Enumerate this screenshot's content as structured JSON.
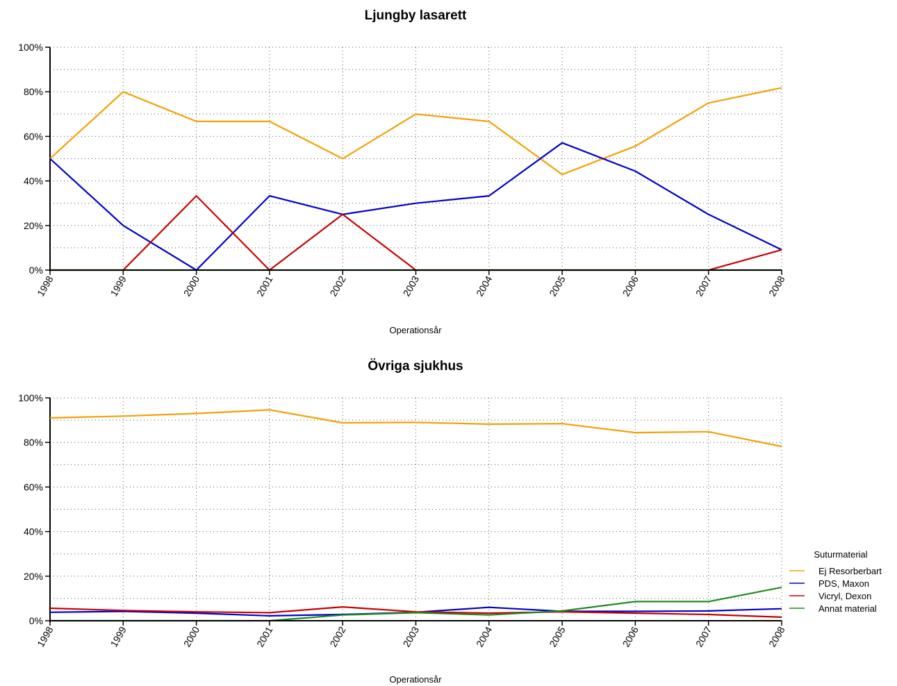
{
  "chart_data": [
    {
      "type": "line",
      "title": "Ljungby lasarett",
      "xlabel": "Operationsår",
      "ylabel": "",
      "ylim": [
        0,
        100
      ],
      "yticks": [
        "0%",
        "20%",
        "40%",
        "60%",
        "80%",
        "100%"
      ],
      "x": [
        "1998",
        "1999",
        "2000",
        "2001",
        "2002",
        "2003",
        "2004",
        "2005",
        "2006",
        "2007",
        "2008"
      ],
      "grid": true,
      "series": [
        {
          "name": "Ej Resorberbart",
          "color": "#f5a000",
          "values": [
            50,
            80,
            66.7,
            66.7,
            50,
            70,
            66.7,
            42.9,
            55.6,
            75,
            81.8
          ]
        },
        {
          "name": "PDS, Maxon",
          "color": "#0000c8",
          "values": [
            50,
            20,
            0,
            33.3,
            25,
            30,
            33.3,
            57.1,
            44.4,
            25,
            9.1
          ]
        },
        {
          "name": "Vicryl, Dexon",
          "color": "#c80000",
          "values": [
            0,
            0,
            33.3,
            0,
            25,
            0,
            0,
            0,
            0,
            0,
            9.1
          ]
        },
        {
          "name": "Annat material",
          "color": "#1f8a1f",
          "values": [
            0,
            0,
            0,
            0,
            0,
            0,
            0,
            0,
            0,
            0,
            0
          ]
        }
      ]
    },
    {
      "type": "line",
      "title": "Övriga sjukhus",
      "xlabel": "Operationsår",
      "ylabel": "",
      "ylim": [
        0,
        100
      ],
      "yticks": [
        "0%",
        "20%",
        "40%",
        "60%",
        "80%",
        "100%"
      ],
      "x": [
        "1998",
        "1999",
        "2000",
        "2001",
        "2002",
        "2003",
        "2004",
        "2005",
        "2006",
        "2007",
        "2008"
      ],
      "grid": true,
      "series": [
        {
          "name": "Ej Resorberbart",
          "color": "#f5a000",
          "values": [
            91,
            91.8,
            93,
            94.6,
            88.8,
            89,
            88.2,
            88.4,
            84.4,
            84.8,
            78.2
          ]
        },
        {
          "name": "PDS, Maxon",
          "color": "#0000c8",
          "values": [
            3.8,
            4.2,
            3.4,
            2.2,
            2.8,
            3.8,
            6,
            4.2,
            4.2,
            4.4,
            5.4
          ]
        },
        {
          "name": "Vicryl, Dexon",
          "color": "#c80000",
          "values": [
            5.6,
            4.6,
            4,
            3.6,
            6.2,
            4,
            3.4,
            4,
            3.4,
            2.8,
            1.6
          ]
        },
        {
          "name": "Annat material",
          "color": "#1f8a1f",
          "values": [
            0,
            0,
            0,
            0,
            2.6,
            3.6,
            2.6,
            4.4,
            8.6,
            8.6,
            15
          ]
        }
      ]
    }
  ],
  "legend": {
    "title": "Suturmaterial",
    "position": "right",
    "items": [
      {
        "label": "Ej Resorberbart",
        "color": "#f5a000"
      },
      {
        "label": "PDS, Maxon",
        "color": "#0000c8"
      },
      {
        "label": "Vicryl, Dexon",
        "color": "#c80000"
      },
      {
        "label": "Annat material",
        "color": "#1f8a1f"
      }
    ]
  }
}
